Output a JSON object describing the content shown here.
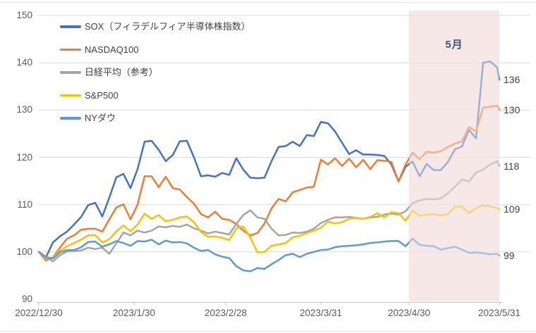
{
  "chart_data": {
    "type": "line",
    "title": "",
    "x_axis": {
      "tick_labels": [
        "2022/12/30",
        "2023/1/30",
        "2023/2/28",
        "2023/3/31",
        "2023/4/30",
        "2023/5/31"
      ]
    },
    "y_axis": {
      "tick_labels": [
        "150",
        "140",
        "130",
        "120",
        "110",
        "100",
        "90"
      ],
      "min": 90,
      "max": 150
    },
    "highlight_band": {
      "label": "5月",
      "start_tick": "2023/4/30",
      "end_tick": "2023/5/31",
      "color": "#F6E8E6"
    },
    "grid_color": "#D9D9D9",
    "axis_color": "#C6C6C6",
    "series": [
      {
        "name": "SOX（フィラデルフィア半導体株指数）",
        "color": "#4472C4",
        "end_label": "136",
        "values": [
          100,
          98.8,
          102,
          103.3,
          104.3,
          105.8,
          107.4,
          109.9,
          110.4,
          107.5,
          111.5,
          115.8,
          116.5,
          113.5,
          117.5,
          123.3,
          123.5,
          121.6,
          119.2,
          120.5,
          123.4,
          123.5,
          120,
          116,
          116.2,
          115.9,
          116.7,
          116.3,
          119.8,
          117.4,
          115.7,
          115.6,
          115.7,
          119.2,
          122.2,
          122.4,
          123.3,
          122.4,
          124.7,
          124.5,
          127.5,
          127.2,
          125.5,
          123.1,
          120.7,
          121.5,
          120.6,
          120.6,
          120.5,
          120.3,
          118.5,
          114.9,
          118,
          119.1,
          116,
          118.6,
          117.3,
          117.3,
          119,
          121.7,
          122.3,
          125.8,
          124,
          140,
          140.3,
          139,
          136.4
        ]
      },
      {
        "name": "NASDAQ100",
        "color": "#ED7D31",
        "end_label": "130",
        "values": [
          100,
          98.2,
          98.8,
          100.9,
          102.8,
          103.5,
          104.7,
          104.9,
          104.9,
          104.3,
          106.9,
          109.4,
          110.1,
          106.9,
          110,
          116,
          116,
          113.7,
          115.9,
          113.5,
          113.2,
          111.6,
          110.2,
          108,
          107.3,
          108.5,
          107,
          106.8,
          105.9,
          104.5,
          103.5,
          104,
          106,
          109.2,
          111.2,
          110.7,
          112.6,
          113.1,
          113.6,
          113.8,
          119.5,
          118.5,
          119.8,
          118.2,
          119.7,
          117.9,
          119.5,
          117.5,
          119.4,
          119.3,
          119,
          114.9,
          118.5,
          121,
          119.6,
          121.2,
          121,
          121.3,
          122.2,
          122.9,
          123.4,
          126.4,
          125.5,
          130.5,
          130.7,
          130.9,
          130.1
        ]
      },
      {
        "name": "日経平均（参考）",
        "color": "#A5A5A5",
        "end_label": "118",
        "values": [
          100,
          99,
          98,
          99.3,
          100.1,
          100.2,
          100.3,
          100.9,
          100.6,
          100.9,
          99.6,
          101.8,
          104.1,
          103.5,
          104.5,
          104.1,
          104.5,
          105.4,
          105.2,
          105.5,
          105.3,
          105.8,
          105,
          104.5,
          103.9,
          104.3,
          104,
          103.7,
          105.9,
          107.8,
          108.8,
          107.3,
          107,
          104.9,
          103.5,
          103.6,
          104.1,
          104,
          104.3,
          104.9,
          106.1,
          106.8,
          107.3,
          107.3,
          107.4,
          107.2,
          107,
          107.3,
          107.4,
          107.9,
          108.1,
          107.9,
          108.6,
          110.3,
          110.9,
          111.2,
          111.1,
          111.3,
          112.4,
          113.8,
          115.3,
          114.9,
          116.8,
          117.4,
          118.5,
          119.2,
          118.2
        ]
      },
      {
        "name": "S&P500",
        "color": "#FFC000",
        "end_label": "109",
        "values": [
          100,
          98.7,
          98.8,
          100.2,
          101.2,
          101.9,
          102.6,
          103.5,
          103.6,
          102,
          102.7,
          104.4,
          105.6,
          104.4,
          105.8,
          108.1,
          107,
          107.8,
          106.5,
          106.8,
          107.3,
          107.5,
          106.3,
          104.2,
          103.2,
          103.3,
          103,
          102.5,
          105,
          105.4,
          103,
          99.9,
          100,
          101.3,
          101.6,
          101.9,
          103.1,
          103.4,
          104,
          104.5,
          105.1,
          106.4,
          106,
          106.3,
          107,
          107.2,
          107,
          107.4,
          108.2,
          107.3,
          108.4,
          108.2,
          106.6,
          108.8,
          107.6,
          107.9,
          108,
          107.7,
          108,
          109.6,
          109.6,
          108.2,
          109.3,
          109.8,
          109.7,
          109.2,
          109
        ]
      },
      {
        "name": "NYダウ",
        "color": "#5B9BD5",
        "end_label": "99",
        "values": [
          100,
          98.9,
          98.6,
          99.9,
          100.4,
          100.4,
          101,
          102.1,
          102.2,
          101.1,
          101.6,
          102.3,
          101.9,
          101.3,
          102.3,
          102.2,
          102.6,
          101.6,
          102.4,
          102,
          102.1,
          101.8,
          100.9,
          100.2,
          100.4,
          99.5,
          99,
          98.7,
          97,
          96.1,
          95.9,
          96.6,
          96.4,
          97.4,
          98.3,
          99.3,
          99.6,
          98.9,
          99.6,
          100,
          100.4,
          100.5,
          101,
          101.2,
          101.3,
          101.4,
          101.6,
          101.9,
          102,
          102.2,
          102.3,
          102.3,
          101.2,
          102.8,
          101.5,
          101.3,
          101.2,
          100.5,
          100.8,
          101.1,
          100.5,
          99.8,
          99.9,
          99.7,
          99.5,
          99.6,
          99.2
        ]
      }
    ]
  }
}
